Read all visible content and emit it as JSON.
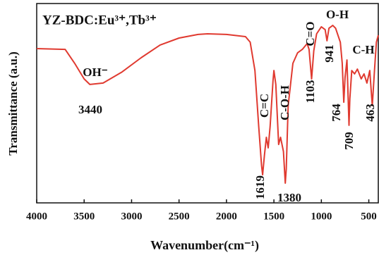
{
  "chart_data": {
    "type": "line",
    "title": "YZ-BDC:Eu³⁺,Tb³⁺",
    "x_label": "Wavenumber(cm⁻¹)",
    "y_label": "Transmittance (a.u.)",
    "xlim": [
      4000,
      400
    ],
    "ylim": [
      0,
      100
    ],
    "xticks": [
      4000,
      3500,
      3000,
      2500,
      2000,
      1500,
      1000,
      500
    ],
    "x": [
      4000,
      3700,
      3600,
      3500,
      3440,
      3300,
      3100,
      2900,
      2700,
      2500,
      2300,
      2200,
      2000,
      1800,
      1750,
      1700,
      1660,
      1630,
      1619,
      1600,
      1580,
      1560,
      1540,
      1510,
      1500,
      1480,
      1450,
      1430,
      1400,
      1380,
      1370,
      1350,
      1300,
      1250,
      1200,
      1150,
      1130,
      1103,
      1080,
      1050,
      1000,
      960,
      941,
      920,
      880,
      850,
      800,
      780,
      764,
      750,
      730,
      709,
      700,
      680,
      650,
      620,
      580,
      550,
      520,
      490,
      463,
      440,
      420,
      400
    ],
    "series": [
      {
        "color": "#e03a30",
        "values": [
          77.4,
          77.0,
          70.0,
          62.2,
          59.4,
          60.1,
          65.7,
          72.8,
          79.2,
          82.7,
          84.5,
          84.8,
          84.5,
          83.4,
          80.6,
          66.4,
          38.2,
          18.7,
          14.1,
          24.0,
          32.9,
          27.6,
          38.2,
          61.1,
          66.4,
          59.4,
          29.3,
          32.9,
          25.8,
          9.9,
          17.0,
          48.8,
          70.0,
          75.3,
          77.0,
          79.9,
          77.0,
          62.2,
          76.3,
          84.8,
          88.3,
          86.9,
          81.3,
          87.6,
          89.0,
          87.6,
          80.6,
          70.0,
          50.5,
          62.9,
          71.7,
          38.9,
          52.3,
          66.4,
          64.7,
          67.1,
          62.2,
          64.7,
          60.1,
          66.4,
          48.8,
          66.4,
          80.6,
          84.1
        ]
      }
    ],
    "annotations": [
      "OH⁻",
      "3440",
      "C=C",
      "C-O-H",
      "1619",
      "1380",
      "C=O",
      "1103",
      "O-H",
      "941",
      "C-H",
      "764",
      "709",
      "463"
    ]
  }
}
